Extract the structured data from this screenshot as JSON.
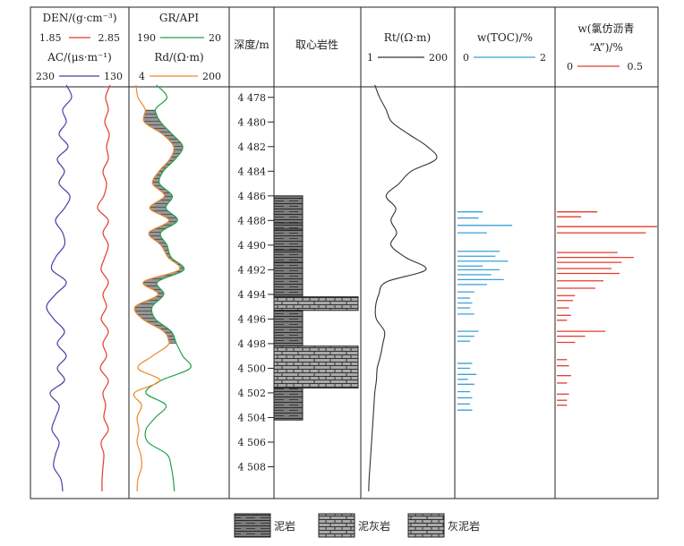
{
  "chart_data": {
    "type": "well-log",
    "depth_axis": {
      "label": "深度/m",
      "ticks": [
        "4 478",
        "4 480",
        "4 482",
        "4 484",
        "4 486",
        "4 488",
        "4 490",
        "4 492",
        "4 494",
        "4 496",
        "4 498",
        "4 500",
        "4 502",
        "4 504",
        "4 506",
        "4 508"
      ],
      "range": [
        4477,
        4510
      ]
    },
    "tracks": [
      {
        "curves": [
          {
            "label": "DEN/(g·cm⁻³)",
            "range": [
              "1.85",
              "2.85"
            ],
            "color": "#e23b2e",
            "depth": [
              4477,
              4478,
              4479,
              4480,
              4481,
              4482,
              4483,
              4484,
              4485,
              4486,
              4487,
              4488,
              4489,
              4490,
              4491,
              4492,
              4493,
              4494,
              4495,
              4496,
              4497,
              4498,
              4499,
              4500,
              4501,
              4502,
              4503,
              4504,
              4505,
              4506,
              4507,
              4508,
              4509,
              4510
            ],
            "values": [
              2.68,
              2.63,
              2.66,
              2.62,
              2.67,
              2.64,
              2.66,
              2.6,
              2.64,
              2.61,
              2.54,
              2.66,
              2.6,
              2.66,
              2.62,
              2.58,
              2.66,
              2.6,
              2.64,
              2.58,
              2.66,
              2.6,
              2.64,
              2.57,
              2.66,
              2.6,
              2.63,
              2.61,
              2.66,
              2.58,
              2.61,
              2.6,
              2.59,
              2.59
            ]
          },
          {
            "label": "AC/(μs·m⁻¹)",
            "range": [
              "230",
              "130"
            ],
            "color": "#4a3fa8",
            "depth": [
              4477,
              4478,
              4479,
              4480,
              4481,
              4482,
              4483,
              4484,
              4485,
              4486,
              4487,
              4488,
              4489,
              4490,
              4491,
              4492,
              4493,
              4494,
              4495,
              4496,
              4497,
              4498,
              4499,
              4500,
              4501,
              4502,
              4503,
              4504,
              4505,
              4506,
              4507,
              4508,
              4509,
              4510
            ],
            "values": [
              196,
              190,
              200,
              196,
              204,
              194,
              206,
              198,
              204,
              192,
              198,
              208,
              200,
              198,
              208,
              212,
              196,
              208,
              218,
              210,
              198,
              206,
              196,
              206,
              198,
              214,
              204,
              208,
              212,
              204,
              208,
              210,
              202,
              200
            ]
          }
        ]
      },
      {
        "curves": [
          {
            "label": "GR/API",
            "range": [
              "190",
              "20"
            ],
            "color": "#22a14a",
            "depth": [
              4477,
              4478,
              4479,
              4480,
              4481,
              4482,
              4483,
              4484,
              4485,
              4486,
              4487,
              4488,
              4489,
              4490,
              4491,
              4492,
              4493,
              4494,
              4495,
              4496,
              4497,
              4498,
              4499,
              4500,
              4501,
              4502,
              4503,
              4504,
              4505,
              4506,
              4507,
              4508,
              4509,
              4510
            ],
            "values": [
              148,
              128,
              150,
              140,
              118,
              98,
              112,
              135,
              142,
              118,
              130,
              108,
              140,
              128,
              120,
              96,
              146,
              134,
              156,
              150,
              120,
              110,
              98,
              84,
              140,
              168,
              130,
              150,
              168,
              164,
              128,
              120,
              116,
              114
            ]
          },
          {
            "label": "Rd/(Ω·m)",
            "range": [
              "4",
              "200"
            ],
            "color": "#f0882a",
            "depth": [
              4477,
              4478,
              4479,
              4480,
              4481,
              4482,
              4483,
              4484,
              4485,
              4486,
              4487,
              4488,
              4489,
              4490,
              4491,
              4492,
              4493,
              4494,
              4495,
              4496,
              4497,
              4498,
              4499,
              4500,
              4501,
              4502,
              4503,
              4504,
              4505,
              4506,
              4507,
              4508,
              4509,
              4510
            ],
            "values": [
              8,
              12,
              28,
              26,
              66,
              90,
              82,
              58,
              44,
              70,
              38,
              80,
              36,
              62,
              78,
              102,
              24,
              56,
              6,
              22,
              68,
              80,
              44,
              12,
              60,
              4,
              20,
              10,
              14,
              10,
              18,
              20,
              12,
              10
            ]
          }
        ]
      },
      {
        "curves": [
          {
            "label": "Rt/(Ω·m)",
            "range": [
              "1",
              "200"
            ],
            "color": "#333333",
            "depth": [
              4477,
              4478,
              4479,
              4480,
              4481,
              4482,
              4483,
              4484,
              4485,
              4486,
              4487,
              4488,
              4489,
              4490,
              4491,
              4492,
              4493,
              4494,
              4495,
              4496,
              4497,
              4498,
              4499,
              4500,
              4501,
              4502,
              4503,
              4504,
              4505,
              4506,
              4507,
              4508,
              4509,
              4510
            ],
            "values": [
              20,
              32,
              48,
              62,
              104,
              150,
              172,
              110,
              80,
              48,
              72,
              60,
              74,
              60,
              96,
              146,
              48,
              30,
              22,
              24,
              44,
              40,
              34,
              26,
              24,
              20,
              18,
              16,
              14,
              12,
              10,
              8,
              6,
              5
            ]
          }
        ]
      }
    ],
    "toc": {
      "label": "w(TOC)/%",
      "range": [
        "0",
        "2"
      ],
      "color": "#3aa0d8",
      "depth": [
        4487.3,
        4487.8,
        4488.4,
        4489.0,
        4490.5,
        4490.9,
        4491.3,
        4491.7,
        4492.0,
        4492.4,
        4492.8,
        4493.2,
        4493.8,
        4494.3,
        4494.7,
        4495.1,
        4495.6,
        4497.0,
        4497.4,
        4497.8,
        4499.6,
        4500.0,
        4500.5,
        4500.9,
        4501.3,
        4501.9,
        4502.4,
        4502.9,
        4503.4
      ],
      "values": [
        0.6,
        0.5,
        1.3,
        0.7,
        1.0,
        0.9,
        1.2,
        0.6,
        1.0,
        0.8,
        1.1,
        0.7,
        0.4,
        0.3,
        0.35,
        0.3,
        0.4,
        0.5,
        0.4,
        0.3,
        0.35,
        0.3,
        0.45,
        0.25,
        0.4,
        0.3,
        0.35,
        0.3,
        0.35
      ]
    },
    "asphalt": {
      "label_line1": "w(氯仿沥青",
      "label_line2": "“A”)/%",
      "range": [
        "0",
        "0.5"
      ],
      "color": "#e23b2e",
      "depth": [
        4487.3,
        4487.7,
        4488.5,
        4489.0,
        4490.6,
        4491.0,
        4491.4,
        4491.9,
        4492.3,
        4492.9,
        4493.5,
        4494.1,
        4494.5,
        4495.1,
        4495.7,
        4496.1,
        4497.0,
        4497.4,
        4497.9,
        4499.3,
        4499.8,
        4500.6,
        4501.2,
        4502.1,
        4502.6,
        4503.0
      ],
      "values": [
        0.2,
        0.12,
        0.56,
        0.44,
        0.3,
        0.38,
        0.32,
        0.27,
        0.31,
        0.23,
        0.19,
        0.09,
        0.08,
        0.06,
        0.07,
        0.05,
        0.24,
        0.14,
        0.09,
        0.05,
        0.06,
        0.07,
        0.05,
        0.06,
        0.05,
        0.05
      ]
    },
    "lithology": {
      "label": "取心岩性",
      "intervals": [
        {
          "top": 4486.0,
          "base": 4488.2,
          "type": "mudstone"
        },
        {
          "top": 4488.2,
          "base": 4488.7,
          "type": "mudstone"
        },
        {
          "top": 4488.7,
          "base": 4490.4,
          "type": "mudstone"
        },
        {
          "top": 4490.4,
          "base": 4491.4,
          "type": "mudstone"
        },
        {
          "top": 4491.4,
          "base": 4494.2,
          "type": "mudstone"
        },
        {
          "top": 4494.2,
          "base": 4495.3,
          "type": "marly_mudstone"
        },
        {
          "top": 4495.3,
          "base": 4498.2,
          "type": "mudstone"
        },
        {
          "top": 4498.2,
          "base": 4501.6,
          "type": "marly_mudstone"
        },
        {
          "top": 4501.6,
          "base": 4504.2,
          "type": "mudstone"
        }
      ],
      "legend": [
        "泥岩",
        "泥灰岩",
        "灰泥岩"
      ]
    }
  }
}
